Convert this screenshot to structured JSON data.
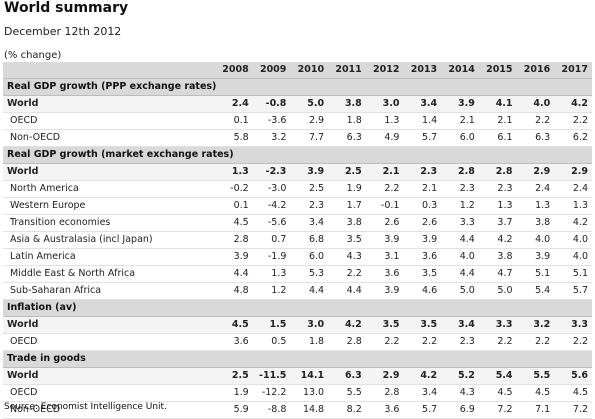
{
  "title": "World summary",
  "date": "December 12th 2012",
  "units": "(% change)",
  "years": [
    "2008",
    "2009",
    "2010",
    "2011",
    "2012",
    "2013",
    "2014",
    "2015",
    "2016",
    "2017"
  ],
  "sections": [
    {
      "heading": "Real GDP growth (PPP exchange rates)",
      "rows": [
        {
          "label": "World",
          "values": [
            "2.4",
            "-0.8",
            "5.0",
            "3.8",
            "3.0",
            "3.4",
            "3.9",
            "4.1",
            "4.0",
            "4.2"
          ]
        },
        {
          "label": "OECD",
          "values": [
            "0.1",
            "-3.6",
            "2.9",
            "1.8",
            "1.3",
            "1.4",
            "2.1",
            "2.1",
            "2.2",
            "2.2"
          ]
        },
        {
          "label": "Non-OECD",
          "values": [
            "5.8",
            "3.2",
            "7.7",
            "6.3",
            "4.9",
            "5.7",
            "6.0",
            "6.1",
            "6.3",
            "6.2"
          ]
        }
      ]
    },
    {
      "heading": "Real GDP growth (market exchange rates)",
      "rows": [
        {
          "label": "World",
          "values": [
            "1.3",
            "-2.3",
            "3.9",
            "2.5",
            "2.1",
            "2.3",
            "2.8",
            "2.8",
            "2.9",
            "2.9"
          ]
        },
        {
          "label": "North America",
          "values": [
            "-0.2",
            "-3.0",
            "2.5",
            "1.9",
            "2.2",
            "2.1",
            "2.3",
            "2.3",
            "2.4",
            "2.4"
          ]
        },
        {
          "label": "Western Europe",
          "values": [
            "0.1",
            "-4.2",
            "2.3",
            "1.7",
            "-0.1",
            "0.3",
            "1.2",
            "1.3",
            "1.3",
            "1.3"
          ]
        },
        {
          "label": "Transition economies",
          "values": [
            "4.5",
            "-5.6",
            "3.4",
            "3.8",
            "2.6",
            "2.6",
            "3.3",
            "3.7",
            "3.8",
            "4.2"
          ]
        },
        {
          "label": "Asia & Australasia (incl Japan)",
          "values": [
            "2.8",
            "0.7",
            "6.8",
            "3.5",
            "3.9",
            "3.9",
            "4.4",
            "4.2",
            "4.0",
            "4.0"
          ]
        },
        {
          "label": "Latin America",
          "values": [
            "3.9",
            "-1.9",
            "6.0",
            "4.3",
            "3.1",
            "3.6",
            "4.0",
            "3.8",
            "3.9",
            "4.0"
          ]
        },
        {
          "label": "Middle East & North Africa",
          "values": [
            "4.4",
            "1.3",
            "5.3",
            "2.2",
            "3.6",
            "3.5",
            "4.4",
            "4.7",
            "5.1",
            "5.1"
          ]
        },
        {
          "label": "Sub-Saharan Africa",
          "values": [
            "4.8",
            "1.2",
            "4.4",
            "4.4",
            "3.9",
            "4.6",
            "5.0",
            "5.0",
            "5.4",
            "5.7"
          ]
        }
      ]
    },
    {
      "heading": "Inflation (av)",
      "rows": [
        {
          "label": "World",
          "values": [
            "4.5",
            "1.5",
            "3.0",
            "4.2",
            "3.5",
            "3.5",
            "3.4",
            "3.3",
            "3.2",
            "3.3"
          ]
        },
        {
          "label": "OECD",
          "values": [
            "3.6",
            "0.5",
            "1.8",
            "2.8",
            "2.2",
            "2.2",
            "2.3",
            "2.2",
            "2.2",
            "2.2"
          ]
        }
      ]
    },
    {
      "heading": "Trade in goods",
      "rows": [
        {
          "label": "World",
          "values": [
            "2.5",
            "-11.5",
            "14.1",
            "6.3",
            "2.9",
            "4.2",
            "5.2",
            "5.4",
            "5.5",
            "5.6"
          ]
        },
        {
          "label": "OECD",
          "values": [
            "1.9",
            "-12.2",
            "13.0",
            "5.5",
            "2.8",
            "3.4",
            "4.3",
            "4.5",
            "4.5",
            "4.5"
          ]
        },
        {
          "label": "Non-OECD",
          "values": [
            "5.9",
            "-8.8",
            "14.8",
            "8.2",
            "3.6",
            "5.7",
            "6.9",
            "7.2",
            "7.1",
            "7.2"
          ]
        }
      ]
    }
  ],
  "source": "Source: Economist Intelligence Unit."
}
